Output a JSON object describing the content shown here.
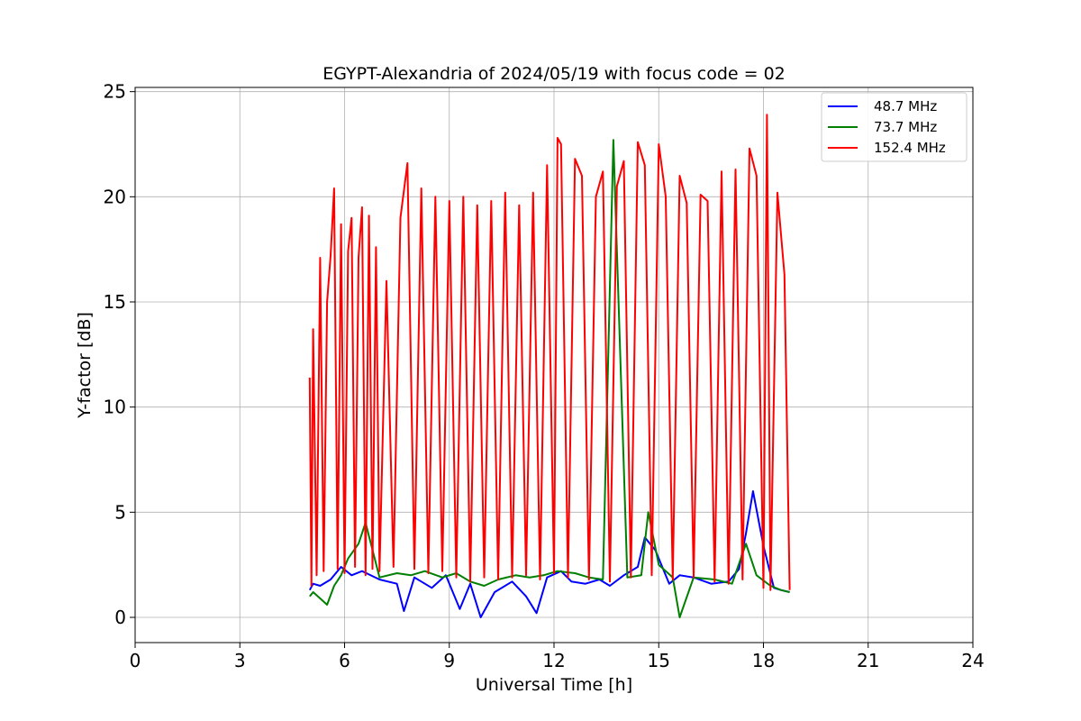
{
  "chart_data": {
    "type": "line",
    "title": "EGYPT-Alexandria of 2024/05/19 with focus code = 02",
    "xlabel": "Universal Time [h]",
    "ylabel": "Y-factor [dB]",
    "xlim": [
      0,
      24
    ],
    "ylim": [
      -1.2,
      25.2
    ],
    "xticks": [
      0,
      3,
      6,
      9,
      12,
      15,
      18,
      21,
      24
    ],
    "yticks": [
      0,
      5,
      10,
      15,
      20,
      25
    ],
    "grid": true,
    "legend_position": "top-right",
    "series": [
      {
        "name": "  48.7 MHz",
        "color": "#0000ff",
        "x": [
          5.0,
          5.1,
          5.3,
          5.6,
          5.9,
          6.2,
          6.5,
          7.0,
          7.5,
          7.7,
          8.0,
          8.5,
          8.9,
          9.3,
          9.6,
          9.9,
          10.3,
          10.8,
          11.2,
          11.5,
          11.8,
          12.2,
          12.5,
          12.9,
          13.3,
          13.6,
          14.0,
          14.4,
          14.6,
          14.9,
          15.3,
          15.6,
          16.0,
          16.5,
          17.0,
          17.3,
          17.5,
          17.7,
          18.0,
          18.3,
          18.5,
          18.75
        ],
        "y": [
          1.3,
          1.6,
          1.5,
          1.8,
          2.4,
          2.0,
          2.2,
          1.8,
          1.6,
          0.3,
          1.9,
          1.4,
          2.0,
          0.4,
          1.6,
          0.0,
          1.2,
          1.7,
          1.0,
          0.2,
          1.9,
          2.2,
          1.7,
          1.6,
          1.8,
          1.5,
          2.0,
          2.4,
          3.8,
          3.2,
          1.6,
          2.0,
          1.9,
          1.6,
          1.7,
          2.3,
          4.0,
          6.0,
          3.4,
          1.4,
          1.3,
          1.2
        ]
      },
      {
        "name": "  73.7 MHz",
        "color": "#008000",
        "x": [
          5.0,
          5.1,
          5.3,
          5.5,
          5.7,
          5.9,
          6.1,
          6.4,
          6.6,
          7.0,
          7.5,
          7.9,
          8.3,
          8.8,
          9.2,
          9.6,
          10.0,
          10.4,
          10.9,
          11.3,
          11.7,
          12.1,
          12.6,
          13.0,
          13.4,
          13.7,
          14.1,
          14.5,
          14.7,
          15.0,
          15.4,
          15.6,
          16.0,
          16.6,
          17.1,
          17.5,
          17.8,
          18.2,
          18.5,
          18.75
        ],
        "y": [
          1.0,
          1.2,
          0.9,
          0.6,
          1.5,
          2.0,
          2.8,
          3.5,
          4.5,
          1.9,
          2.1,
          2.0,
          2.2,
          1.9,
          2.1,
          1.7,
          1.5,
          1.8,
          2.0,
          1.9,
          2.0,
          2.2,
          2.1,
          1.9,
          1.8,
          22.7,
          1.9,
          2.0,
          5.0,
          2.5,
          1.9,
          0.0,
          1.9,
          1.8,
          1.6,
          3.5,
          2.0,
          1.5,
          1.3,
          1.2
        ]
      },
      {
        "name": "152.4 MHz",
        "color": "#ff0000",
        "x": [
          5.0,
          5.05,
          5.1,
          5.2,
          5.3,
          5.4,
          5.5,
          5.6,
          5.7,
          5.8,
          5.9,
          6.0,
          6.1,
          6.2,
          6.3,
          6.4,
          6.5,
          6.6,
          6.7,
          6.8,
          6.9,
          7.0,
          7.2,
          7.4,
          7.6,
          7.8,
          8.0,
          8.2,
          8.4,
          8.6,
          8.8,
          9.0,
          9.2,
          9.4,
          9.6,
          9.8,
          10.0,
          10.2,
          10.4,
          10.6,
          10.8,
          11.0,
          11.2,
          11.4,
          11.6,
          11.8,
          12.0,
          12.1,
          12.2,
          12.4,
          12.6,
          12.8,
          13.0,
          13.2,
          13.4,
          13.6,
          13.8,
          14.0,
          14.2,
          14.4,
          14.6,
          14.8,
          15.0,
          15.2,
          15.4,
          15.6,
          15.8,
          16.0,
          16.2,
          16.4,
          16.6,
          16.8,
          17.0,
          17.2,
          17.4,
          17.6,
          17.8,
          18.0,
          18.1,
          18.2,
          18.4,
          18.6,
          18.75
        ],
        "y": [
          11.4,
          1.5,
          13.7,
          2.0,
          17.1,
          2.2,
          15.0,
          17.2,
          20.4,
          2.3,
          18.7,
          2.1,
          17.4,
          19.0,
          2.4,
          17.1,
          19.5,
          2.0,
          19.1,
          2.3,
          17.6,
          2.2,
          16.0,
          2.4,
          19.0,
          21.6,
          2.3,
          20.4,
          2.1,
          20.0,
          2.2,
          19.8,
          1.9,
          20.0,
          1.7,
          19.6,
          1.9,
          19.8,
          1.8,
          20.2,
          1.9,
          19.6,
          2.0,
          20.2,
          1.8,
          21.5,
          2.1,
          22.8,
          22.5,
          1.9,
          21.8,
          21.0,
          1.8,
          20.0,
          21.2,
          1.7,
          20.5,
          21.7,
          1.9,
          22.6,
          21.5,
          2.0,
          22.5,
          20.0,
          1.8,
          21.0,
          19.7,
          1.9,
          20.1,
          19.8,
          1.7,
          21.2,
          1.6,
          21.3,
          1.8,
          22.3,
          21.0,
          1.4,
          23.9,
          1.3,
          20.2,
          16.3,
          1.3
        ]
      }
    ]
  }
}
